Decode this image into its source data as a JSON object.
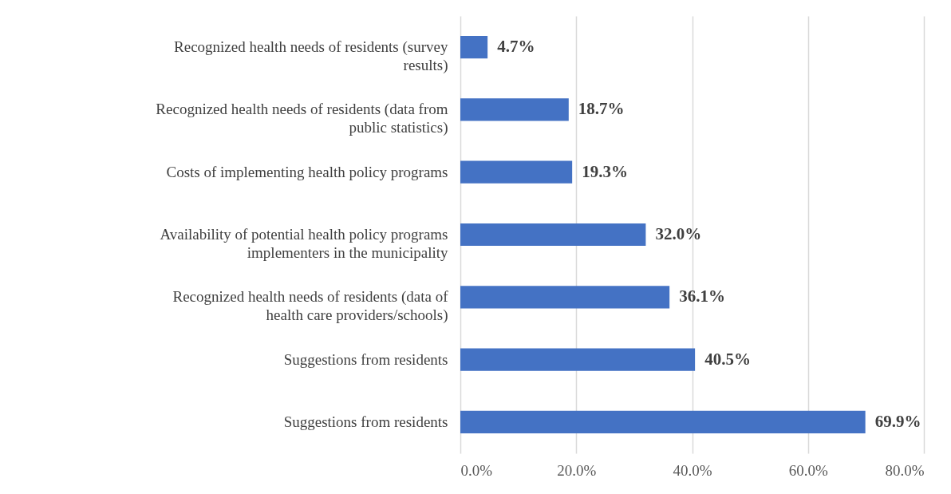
{
  "chart_data": {
    "type": "bar",
    "orientation": "horizontal",
    "categories": [
      "Recognized health needs of residents (survey results)",
      "Recognized health needs of residents (data from public statistics)",
      "Costs of implementing health policy programs",
      "Availability of potential health policy programs implementers in the municipality",
      "Recognized health needs of residents (data of health care providers/schools)",
      "Suggestions from residents",
      "Suggestions from residents"
    ],
    "values": [
      4.7,
      18.7,
      19.3,
      32.0,
      36.1,
      40.5,
      69.9
    ],
    "value_labels": [
      "4.7%",
      "18.7%",
      "19.3%",
      "32.0%",
      "36.1%",
      "40.5%",
      "69.9%"
    ],
    "color": "#4472c4",
    "xlim": [
      0,
      80
    ],
    "xticks": [
      {
        "value": 0,
        "label": "0.0%"
      },
      {
        "value": 20,
        "label": "20.0%"
      },
      {
        "value": 40,
        "label": "40.0%"
      },
      {
        "value": 60,
        "label": "60.0%"
      },
      {
        "value": 80,
        "label": "80.0%"
      }
    ],
    "grid": "x"
  }
}
